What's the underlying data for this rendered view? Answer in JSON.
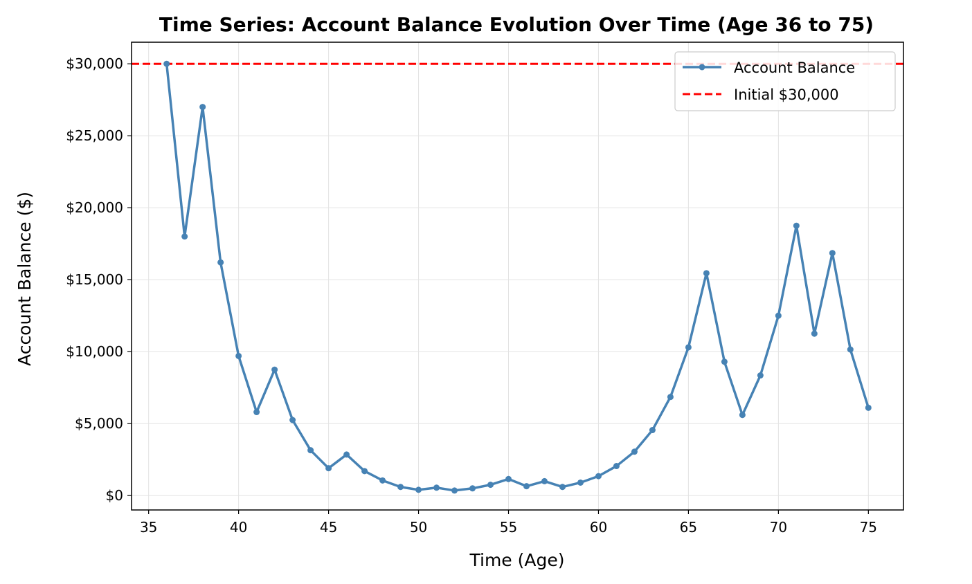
{
  "chart_data": {
    "type": "line",
    "title": "Time Series: Account Balance Evolution Over Time (Age 36 to 75)",
    "xlabel": "Time (Age)",
    "ylabel": "Account Balance ($)",
    "xlim": [
      34.05,
      76.95
    ],
    "ylim": [
      -1000,
      31500
    ],
    "xticks": [
      35,
      40,
      45,
      50,
      55,
      60,
      65,
      70,
      75
    ],
    "xtick_labels": [
      "35",
      "40",
      "45",
      "50",
      "55",
      "60",
      "65",
      "70",
      "75"
    ],
    "yticks": [
      0,
      5000,
      10000,
      15000,
      20000,
      25000,
      30000
    ],
    "ytick_labels": [
      "$0",
      "$5,000",
      "$10,000",
      "$15,000",
      "$20,000",
      "$25,000",
      "$30,000"
    ],
    "grid": true,
    "legend_position": "top-right",
    "series": [
      {
        "name": "Account Balance",
        "color": "#4682b4",
        "style": "solid-with-markers",
        "x": [
          36,
          37,
          38,
          39,
          40,
          41,
          42,
          43,
          44,
          45,
          46,
          47,
          48,
          49,
          50,
          51,
          52,
          53,
          54,
          55,
          56,
          57,
          58,
          59,
          60,
          61,
          62,
          63,
          64,
          65,
          66,
          67,
          68,
          69,
          70,
          71,
          72,
          73,
          74,
          75
        ],
        "values": [
          30000,
          18000,
          27000,
          16200,
          9700,
          5800,
          8750,
          5250,
          3150,
          1900,
          2850,
          1700,
          1050,
          600,
          400,
          550,
          350,
          500,
          750,
          1150,
          650,
          1000,
          600,
          900,
          1350,
          2050,
          3050,
          4550,
          6850,
          10300,
          15450,
          9300,
          5600,
          8350,
          12500,
          18750,
          11250,
          16850,
          10150,
          6100
        ]
      },
      {
        "name": "Initial $30,000",
        "color": "#ff0000",
        "style": "dashed-horizontal",
        "value": 30000
      }
    ]
  }
}
